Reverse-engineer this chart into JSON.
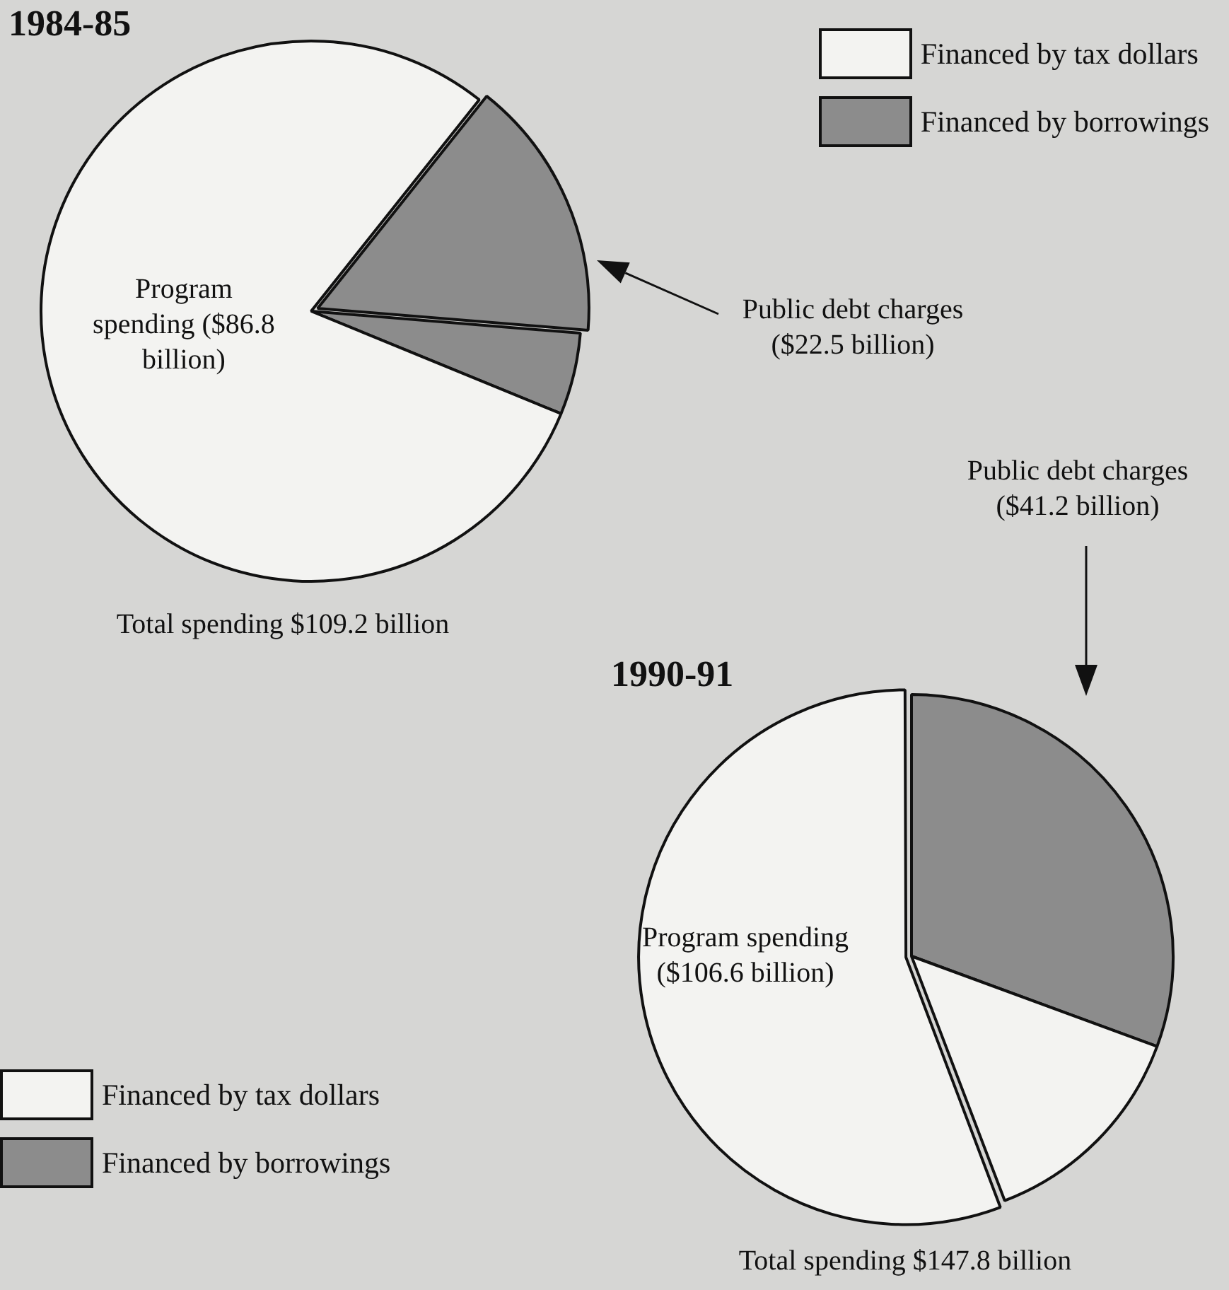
{
  "chart_data": [
    {
      "type": "pie",
      "title": "1984-85",
      "categories": [
        "Financed by borrowings",
        null,
        "Financed by tax dollars"
      ],
      "values": [
        15.6,
        4.9,
        79.5
      ],
      "colors": [
        "#8c8c8c",
        "#8c8c8c",
        "#f3f3f1"
      ],
      "legend": "top right",
      "annotations": [
        "Program spending ($86.8 billion)",
        "Public debt charges ($22.5 billion)",
        "Total spending $109.2 billion"
      ]
    },
    {
      "type": "pie",
      "title": "1990-91",
      "categories": [
        "Financed by borrowings",
        "Financed by tax dollars",
        null
      ],
      "values": [
        30.6,
        13.6,
        55.8
      ],
      "colors": [
        "#8c8c8c",
        "#f3f3f1",
        "#f3f3f1"
      ],
      "legend": "bottom left",
      "annotations": [
        "Program spending ($106.6 billion)",
        "Public debt charges ($41.2 billion)",
        "Total spending $147.8 billion"
      ]
    }
  ]
}
